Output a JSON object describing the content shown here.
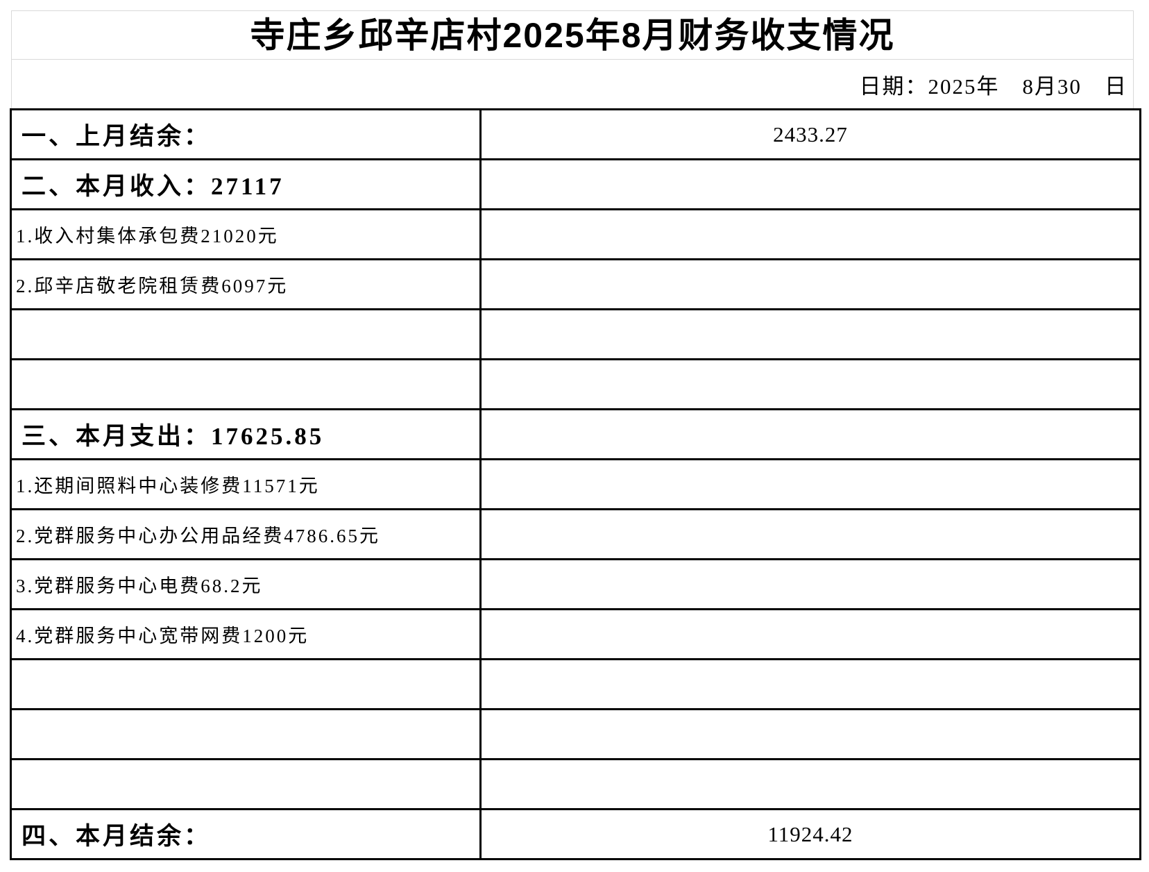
{
  "header": {
    "title": "寺庄乡邱辛店村2025年8月财务收支情况",
    "date_line": "日期：2025年　8月30　日"
  },
  "table": {
    "rows": [
      {
        "type": "section",
        "label": "一、上月结余：",
        "value": "2433.27"
      },
      {
        "type": "section",
        "label": "二、本月收入：27117",
        "value": ""
      },
      {
        "type": "detail",
        "label": "1.收入村集体承包费21020元",
        "value": ""
      },
      {
        "type": "detail",
        "label": "2.邱辛店敬老院租赁费6097元",
        "value": ""
      },
      {
        "type": "empty",
        "label": "",
        "value": ""
      },
      {
        "type": "empty",
        "label": "",
        "value": ""
      },
      {
        "type": "section",
        "label": "三、本月支出：17625.85",
        "value": ""
      },
      {
        "type": "detail",
        "label": "1.还期间照料中心装修费11571元",
        "value": ""
      },
      {
        "type": "detail",
        "label": "2.党群服务中心办公用品经费4786.65元",
        "value": ""
      },
      {
        "type": "detail",
        "label": "3.党群服务中心电费68.2元",
        "value": ""
      },
      {
        "type": "detail",
        "label": "4.党群服务中心宽带网费1200元",
        "value": ""
      },
      {
        "type": "empty",
        "label": "",
        "value": ""
      },
      {
        "type": "empty",
        "label": "",
        "value": ""
      },
      {
        "type": "empty",
        "label": "",
        "value": ""
      },
      {
        "type": "section",
        "label": "四、本月结余：",
        "value": "11924.42"
      }
    ]
  },
  "colors": {
    "background": "#ffffff",
    "text": "#000000",
    "table_border": "#000000",
    "faint_gridline": "#d9d9d9"
  }
}
